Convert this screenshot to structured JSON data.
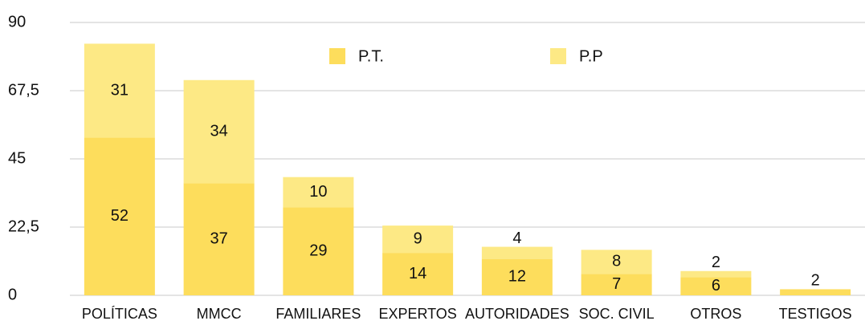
{
  "chart_data": {
    "type": "stacked_bar",
    "categories": [
      "POLÍTICAS",
      "MMCC",
      "FAMILIARES",
      "EXPERTOS",
      "AUTORIDADES",
      "SOC. CIVIL",
      "OTROS",
      "TESTIGOS"
    ],
    "series": [
      {
        "name": "P.T.",
        "color": "#fddd5c",
        "values": [
          52,
          37,
          29,
          14,
          12,
          7,
          6,
          2
        ]
      },
      {
        "name": "P.P",
        "color": "#fde985",
        "values": [
          31,
          34,
          10,
          9,
          4,
          8,
          2,
          null
        ]
      }
    ],
    "ylim": [
      0,
      90
    ],
    "yticks": [
      0,
      {
        "value": 22.5,
        "label": "22,5"
      },
      45,
      {
        "value": 67.5,
        "label": "67,5"
      },
      90
    ],
    "grid": true,
    "legend": "top"
  }
}
